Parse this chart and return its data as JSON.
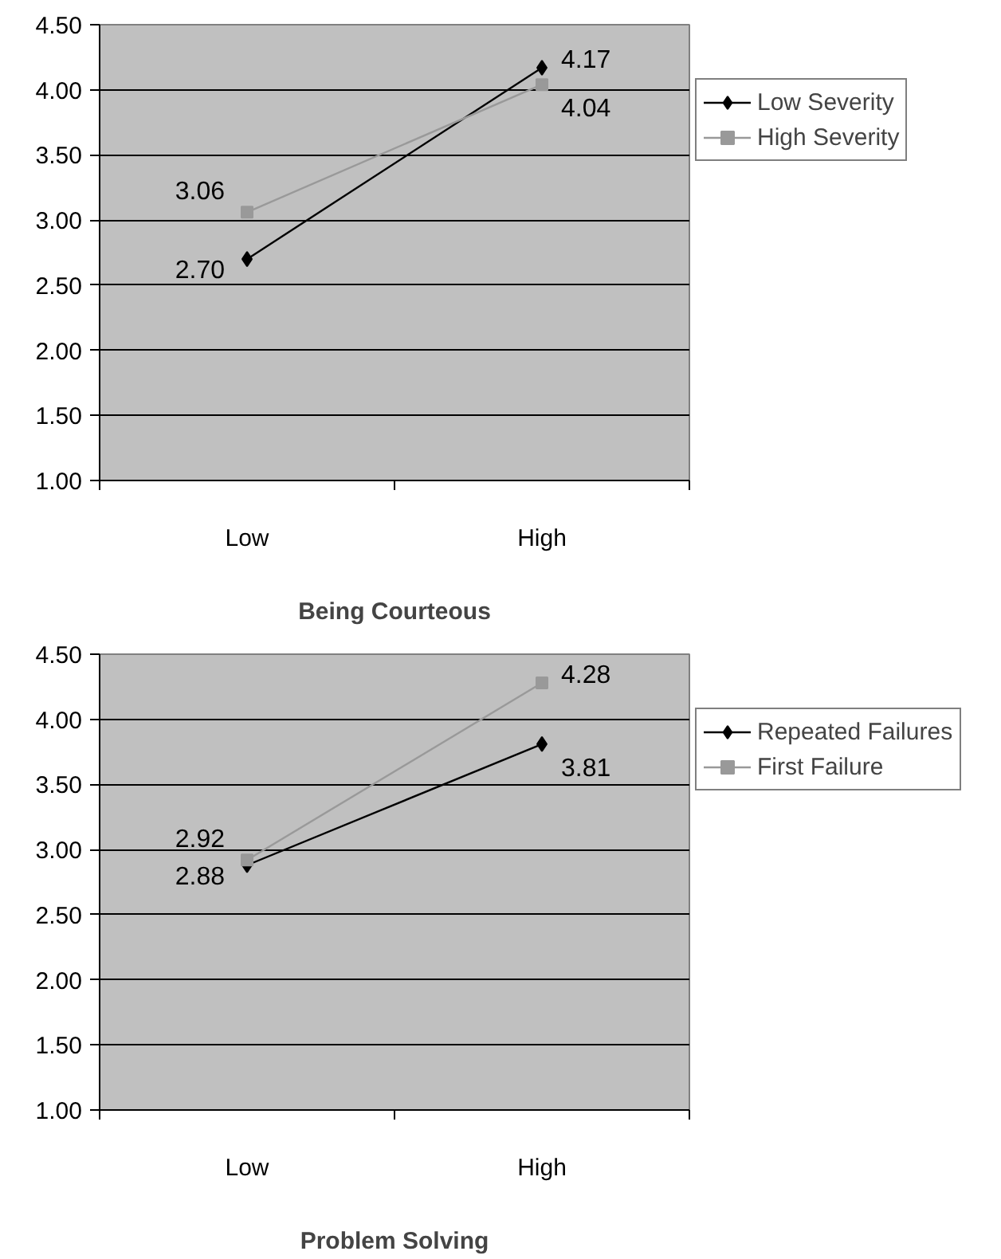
{
  "chart_data": [
    {
      "type": "line",
      "xlabel": "Being Courteous",
      "categories": [
        "Low",
        "High"
      ],
      "ylim": [
        1,
        4.5
      ],
      "yticks": [
        {
          "value": 1,
          "label": "1.00"
        },
        {
          "value": 1.5,
          "label": "1.50"
        },
        {
          "value": 2,
          "label": "2.00"
        },
        {
          "value": 2.5,
          "label": "2.50"
        },
        {
          "value": 3,
          "label": "3.00"
        },
        {
          "value": 3.5,
          "label": "3.50"
        },
        {
          "value": 4,
          "label": "4.00"
        },
        {
          "value": 4.5,
          "label": "4.50"
        }
      ],
      "grid": "y",
      "legend": "right",
      "series": [
        {
          "name": "Low Severity",
          "color": "#000000",
          "marker": "diamond",
          "values": [
            2.7,
            4.17
          ],
          "value_labels": [
            "2.70",
            "4.17"
          ]
        },
        {
          "name": "High Severity",
          "color": "#999999",
          "marker": "square",
          "values": [
            3.06,
            4.04
          ],
          "value_labels": [
            "3.06",
            "4.04"
          ]
        }
      ]
    },
    {
      "type": "line",
      "xlabel": "Problem Solving",
      "categories": [
        "Low",
        "High"
      ],
      "ylim": [
        1,
        4.5
      ],
      "yticks": [
        {
          "value": 1,
          "label": "1.00"
        },
        {
          "value": 1.5,
          "label": "1.50"
        },
        {
          "value": 2,
          "label": "2.00"
        },
        {
          "value": 2.5,
          "label": "2.50"
        },
        {
          "value": 3,
          "label": "3.00"
        },
        {
          "value": 3.5,
          "label": "3.50"
        },
        {
          "value": 4,
          "label": "4.00"
        },
        {
          "value": 4.5,
          "label": "4.50"
        }
      ],
      "grid": "y",
      "legend": "right",
      "series": [
        {
          "name": "Repeated Failures",
          "color": "#000000",
          "marker": "diamond",
          "values": [
            2.88,
            3.81
          ],
          "value_labels": [
            "2.88",
            "3.81"
          ]
        },
        {
          "name": "First Failure",
          "color": "#999999",
          "marker": "square",
          "values": [
            2.92,
            4.28
          ],
          "value_labels": [
            "2.92",
            "4.28"
          ]
        }
      ]
    }
  ]
}
